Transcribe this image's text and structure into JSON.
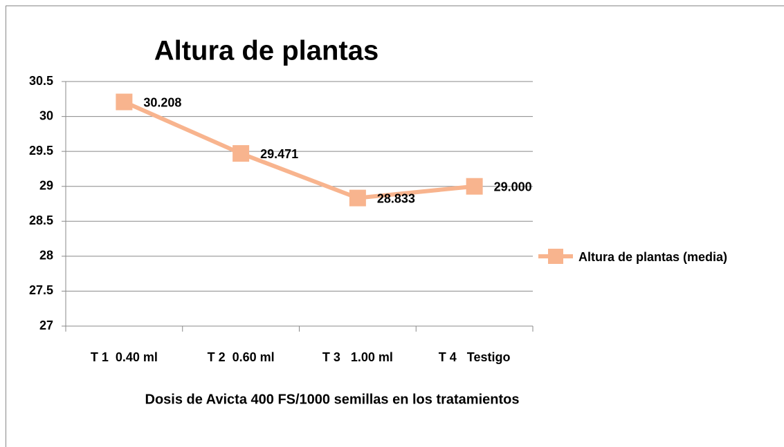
{
  "chart_data": {
    "type": "line",
    "title": "Altura de plantas",
    "x_label": "Dosis de Avicta 400 FS/1000 semillas en los tratamientos",
    "categories": [
      "T 1  0.40 ml",
      "T 2  0.60 ml",
      "T 3   1.00 ml",
      "T 4   Testigo"
    ],
    "series": [
      {
        "name": "Altura de plantas (media)",
        "color": "#f8b48e",
        "values": [
          30.208,
          29.471,
          28.833,
          29
        ],
        "value_labels": [
          "30.208",
          "29.471",
          "28.833",
          "29.000"
        ]
      }
    ],
    "ylim": [
      27,
      30.5
    ],
    "yticks": [
      27,
      27.5,
      28,
      28.5,
      29,
      29.5,
      30,
      30.5
    ],
    "grid": true,
    "legend": "right"
  }
}
